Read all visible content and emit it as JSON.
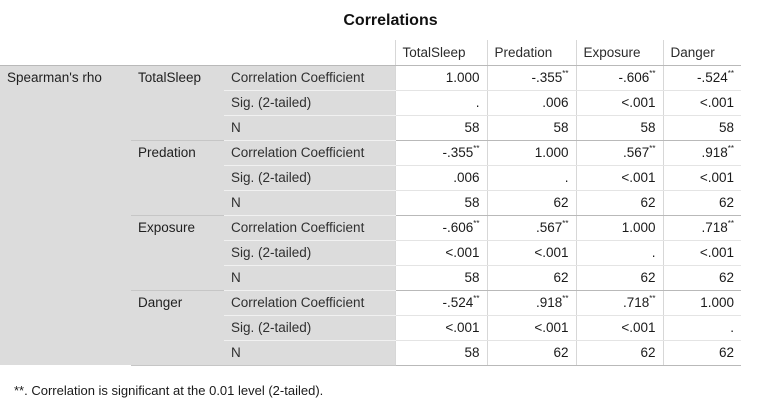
{
  "title": "Correlations",
  "method": "Spearman's rho",
  "columns": [
    "TotalSleep",
    "Predation",
    "Exposure",
    "Danger"
  ],
  "rows": [
    {
      "variable": "TotalSleep",
      "stats": [
        {
          "label": "Correlation Coefficient",
          "values": [
            {
              "v": "1.000",
              "sig": ""
            },
            {
              "v": "-.355",
              "sig": "**"
            },
            {
              "v": "-.606",
              "sig": "**"
            },
            {
              "v": "-.524",
              "sig": "**"
            }
          ]
        },
        {
          "label": "Sig. (2-tailed)",
          "values": [
            {
              "v": ".",
              "sig": ""
            },
            {
              "v": ".006",
              "sig": ""
            },
            {
              "v": "<.001",
              "sig": ""
            },
            {
              "v": "<.001",
              "sig": ""
            }
          ]
        },
        {
          "label": "N",
          "values": [
            {
              "v": "58",
              "sig": ""
            },
            {
              "v": "58",
              "sig": ""
            },
            {
              "v": "58",
              "sig": ""
            },
            {
              "v": "58",
              "sig": ""
            }
          ]
        }
      ]
    },
    {
      "variable": "Predation",
      "stats": [
        {
          "label": "Correlation Coefficient",
          "values": [
            {
              "v": "-.355",
              "sig": "**"
            },
            {
              "v": "1.000",
              "sig": ""
            },
            {
              "v": ".567",
              "sig": "**"
            },
            {
              "v": ".918",
              "sig": "**"
            }
          ]
        },
        {
          "label": "Sig. (2-tailed)",
          "values": [
            {
              "v": ".006",
              "sig": ""
            },
            {
              "v": ".",
              "sig": ""
            },
            {
              "v": "<.001",
              "sig": ""
            },
            {
              "v": "<.001",
              "sig": ""
            }
          ]
        },
        {
          "label": "N",
          "values": [
            {
              "v": "58",
              "sig": ""
            },
            {
              "v": "62",
              "sig": ""
            },
            {
              "v": "62",
              "sig": ""
            },
            {
              "v": "62",
              "sig": ""
            }
          ]
        }
      ]
    },
    {
      "variable": "Exposure",
      "stats": [
        {
          "label": "Correlation Coefficient",
          "values": [
            {
              "v": "-.606",
              "sig": "**"
            },
            {
              "v": ".567",
              "sig": "**"
            },
            {
              "v": "1.000",
              "sig": ""
            },
            {
              "v": ".718",
              "sig": "**"
            }
          ]
        },
        {
          "label": "Sig. (2-tailed)",
          "values": [
            {
              "v": "<.001",
              "sig": ""
            },
            {
              "v": "<.001",
              "sig": ""
            },
            {
              "v": ".",
              "sig": ""
            },
            {
              "v": "<.001",
              "sig": ""
            }
          ]
        },
        {
          "label": "N",
          "values": [
            {
              "v": "58",
              "sig": ""
            },
            {
              "v": "62",
              "sig": ""
            },
            {
              "v": "62",
              "sig": ""
            },
            {
              "v": "62",
              "sig": ""
            }
          ]
        }
      ]
    },
    {
      "variable": "Danger",
      "stats": [
        {
          "label": "Correlation Coefficient",
          "values": [
            {
              "v": "-.524",
              "sig": "**"
            },
            {
              "v": ".918",
              "sig": "**"
            },
            {
              "v": ".718",
              "sig": "**"
            },
            {
              "v": "1.000",
              "sig": ""
            }
          ]
        },
        {
          "label": "Sig. (2-tailed)",
          "values": [
            {
              "v": "<.001",
              "sig": ""
            },
            {
              "v": "<.001",
              "sig": ""
            },
            {
              "v": "<.001",
              "sig": ""
            },
            {
              "v": ".",
              "sig": ""
            }
          ]
        },
        {
          "label": "N",
          "values": [
            {
              "v": "58",
              "sig": ""
            },
            {
              "v": "62",
              "sig": ""
            },
            {
              "v": "62",
              "sig": ""
            },
            {
              "v": "62",
              "sig": ""
            }
          ]
        }
      ]
    }
  ],
  "footnote": "**. Correlation is significant at the 0.01 level (2-tailed).",
  "colors": {
    "stub_background": "#dcdcdc",
    "value_background": "#ffffff",
    "grid": "#d7d7d7"
  }
}
